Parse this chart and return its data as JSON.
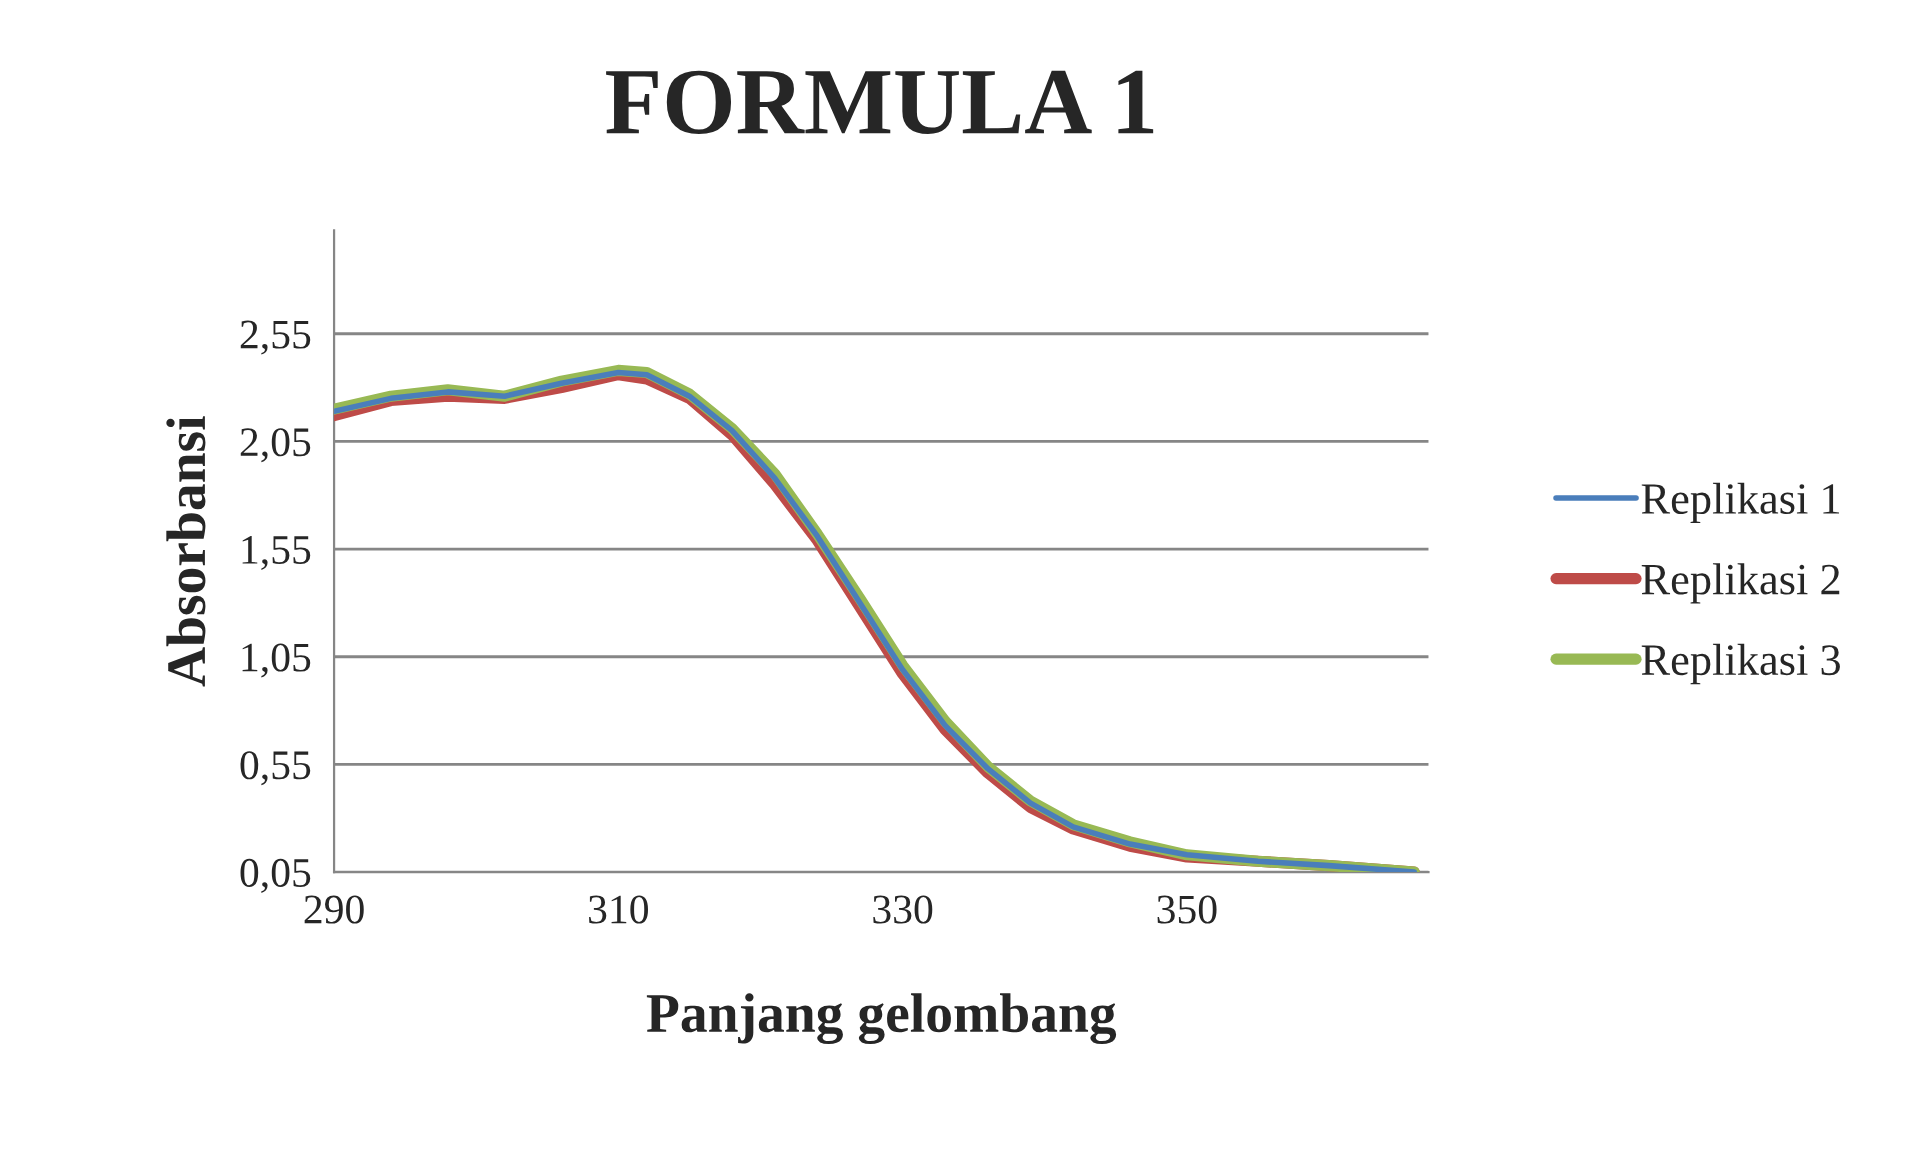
{
  "chart_data": {
    "type": "line",
    "title": "FORMULA 1",
    "xlabel": "Panjang gelombang",
    "ylabel": "Absorbansi",
    "x": [
      290,
      294,
      298,
      302,
      306,
      310,
      312,
      315,
      318,
      321,
      324,
      327,
      330,
      333,
      336,
      339,
      342,
      346,
      350,
      355,
      360,
      366
    ],
    "series": [
      {
        "name": "Replikasi 1",
        "color": "#4a7ebb",
        "values": [
          2.19,
          2.25,
          2.28,
          2.26,
          2.32,
          2.37,
          2.36,
          2.26,
          2.1,
          1.88,
          1.61,
          1.3,
          0.99,
          0.73,
          0.53,
          0.37,
          0.26,
          0.18,
          0.13,
          0.1,
          0.08,
          0.05
        ]
      },
      {
        "name": "Replikasi 2",
        "color": "#be4b48",
        "values": [
          2.17,
          2.24,
          2.26,
          2.25,
          2.3,
          2.36,
          2.34,
          2.25,
          2.08,
          1.85,
          1.59,
          1.28,
          0.97,
          0.71,
          0.51,
          0.35,
          0.25,
          0.17,
          0.12,
          0.1,
          0.08,
          0.05
        ]
      },
      {
        "name": "Replikasi 3",
        "color": "#98b954",
        "values": [
          2.2,
          2.26,
          2.29,
          2.26,
          2.33,
          2.38,
          2.37,
          2.27,
          2.11,
          1.9,
          1.62,
          1.32,
          1.01,
          0.75,
          0.54,
          0.38,
          0.27,
          0.19,
          0.13,
          0.1,
          0.08,
          0.05
        ]
      }
    ],
    "xlim": [
      290,
      367
    ],
    "ylim": [
      0.05,
      3.03
    ],
    "xticks": [
      290,
      310,
      330,
      350
    ],
    "yticks": [
      {
        "value": 0.05,
        "label": "0,05"
      },
      {
        "value": 0.55,
        "label": "0,55"
      },
      {
        "value": 1.05,
        "label": "1,05"
      },
      {
        "value": 1.55,
        "label": "1,55"
      },
      {
        "value": 2.05,
        "label": "2,05"
      },
      {
        "value": 2.55,
        "label": "2,55"
      }
    ],
    "grid": "y",
    "legend": "right",
    "marker": "none",
    "line_style": "solid"
  }
}
